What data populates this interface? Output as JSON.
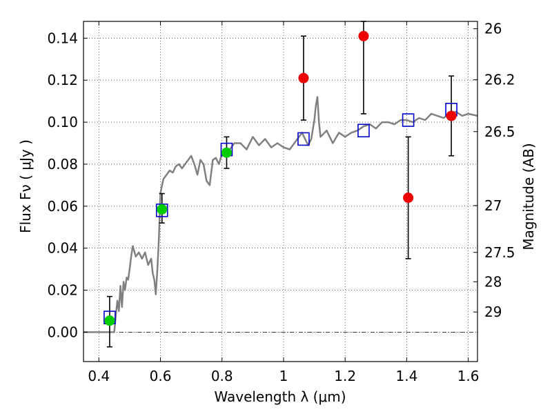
{
  "chart_data": {
    "type": "scatter",
    "xlabel": "Wavelength  λ (μm)",
    "ylabel": "Flux  Fν  ( μJy )",
    "y2label": "Magnitude (AB)",
    "xlim": [
      0.35,
      1.63
    ],
    "ylim": [
      -0.014,
      0.148
    ],
    "grid": true,
    "x_ticks": [
      0.4,
      0.6,
      0.8,
      1.0,
      1.2,
      1.4,
      1.6
    ],
    "x_tick_labels": [
      "0.4",
      "0.6",
      "0.8",
      "1",
      "1.2",
      "1.4",
      "1.6"
    ],
    "y_ticks": [
      0.0,
      0.02,
      0.04,
      0.06,
      0.08,
      0.1,
      0.12,
      0.14
    ],
    "y_tick_labels": [
      "0.00",
      "0.02",
      "0.04",
      "0.06",
      "0.08",
      "0.10",
      "0.12",
      "0.14"
    ],
    "y2_tick_labels": [
      "26",
      "26.2",
      "26.5",
      "27",
      "27.5",
      "28",
      "29"
    ],
    "y2_tick_flux": [
      0.1445,
      0.1202,
      0.0955,
      0.0603,
      0.038,
      0.024,
      0.0096
    ],
    "colors": {
      "model": "#808080",
      "green": "#00cc00",
      "red": "#ee0000",
      "box": "#0000cc",
      "errorbar": "#000000"
    },
    "model_spectrum": {
      "x": [
        0.35,
        0.45,
        0.455,
        0.46,
        0.465,
        0.47,
        0.475,
        0.48,
        0.485,
        0.49,
        0.495,
        0.5,
        0.505,
        0.51,
        0.52,
        0.53,
        0.54,
        0.55,
        0.56,
        0.57,
        0.575,
        0.58,
        0.585,
        0.59,
        0.595,
        0.6,
        0.605,
        0.61,
        0.62,
        0.63,
        0.64,
        0.65,
        0.66,
        0.67,
        0.68,
        0.69,
        0.7,
        0.71,
        0.72,
        0.73,
        0.74,
        0.75,
        0.76,
        0.77,
        0.78,
        0.79,
        0.8,
        0.82,
        0.84,
        0.86,
        0.88,
        0.9,
        0.92,
        0.94,
        0.96,
        0.98,
        1.0,
        1.02,
        1.04,
        1.06,
        1.08,
        1.09,
        1.1,
        1.105,
        1.11,
        1.115,
        1.12,
        1.14,
        1.16,
        1.18,
        1.2,
        1.22,
        1.24,
        1.26,
        1.28,
        1.3,
        1.32,
        1.34,
        1.36,
        1.38,
        1.4,
        1.42,
        1.44,
        1.46,
        1.48,
        1.5,
        1.52,
        1.54,
        1.56,
        1.58,
        1.6,
        1.63
      ],
      "y": [
        0.0,
        0.0,
        0.008,
        0.015,
        0.01,
        0.022,
        0.012,
        0.024,
        0.02,
        0.026,
        0.025,
        0.03,
        0.036,
        0.041,
        0.036,
        0.038,
        0.035,
        0.038,
        0.032,
        0.035,
        0.028,
        0.025,
        0.018,
        0.03,
        0.045,
        0.066,
        0.07,
        0.073,
        0.075,
        0.077,
        0.076,
        0.079,
        0.08,
        0.078,
        0.08,
        0.082,
        0.084,
        0.08,
        0.075,
        0.082,
        0.08,
        0.072,
        0.07,
        0.082,
        0.083,
        0.08,
        0.085,
        0.086,
        0.09,
        0.09,
        0.087,
        0.093,
        0.089,
        0.092,
        0.088,
        0.09,
        0.088,
        0.087,
        0.091,
        0.095,
        0.089,
        0.092,
        0.101,
        0.108,
        0.112,
        0.1,
        0.093,
        0.096,
        0.09,
        0.095,
        0.093,
        0.095,
        0.096,
        0.098,
        0.099,
        0.097,
        0.1,
        0.1,
        0.099,
        0.101,
        0.101,
        0.1,
        0.102,
        0.101,
        0.104,
        0.103,
        0.102,
        0.104,
        0.105,
        0.103,
        0.104,
        0.103
      ]
    },
    "model_boxes": {
      "x": [
        0.435,
        0.605,
        0.815,
        1.065,
        1.26,
        1.405,
        1.545
      ],
      "y": [
        0.007,
        0.058,
        0.087,
        0.092,
        0.096,
        0.101,
        0.106
      ]
    },
    "green_points": {
      "x": [
        0.435,
        0.605,
        0.815
      ],
      "y": [
        0.0055,
        0.0585,
        0.0855
      ],
      "err_low": [
        0.0055,
        0.052,
        0.078
      ],
      "err_high": [
        0.0055,
        0.066,
        0.093
      ]
    },
    "red_points": {
      "x": [
        1.065,
        1.26,
        1.405,
        1.545
      ],
      "y": [
        0.121,
        0.141,
        0.064,
        0.103
      ],
      "err_low": [
        0.101,
        0.104,
        0.035,
        0.084
      ],
      "err_high": [
        0.141,
        0.148,
        0.093,
        0.122
      ]
    },
    "errorbar_first": {
      "x": 0.435,
      "low": -0.007,
      "high": 0.017
    },
    "zero_line": 0.0
  }
}
